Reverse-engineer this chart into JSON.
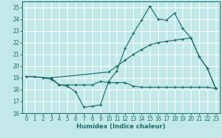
{
  "xlabel": "Humidex (Indice chaleur)",
  "bg_color": "#c2e8e8",
  "line_color": "#1a6e6a",
  "grid_color": "#b0d8d8",
  "xlim": [
    -0.5,
    23.5
  ],
  "ylim": [
    16,
    25.5
  ],
  "yticks": [
    16,
    17,
    18,
    19,
    20,
    21,
    22,
    23,
    24,
    25
  ],
  "xticks": [
    0,
    1,
    2,
    3,
    4,
    5,
    6,
    7,
    8,
    9,
    10,
    11,
    12,
    13,
    14,
    15,
    16,
    17,
    18,
    19,
    20,
    21,
    22,
    23
  ],
  "line1_x": [
    0,
    1,
    2,
    3,
    4,
    5,
    6,
    7,
    8,
    9,
    10,
    11,
    12,
    13,
    14,
    15,
    16,
    17,
    18,
    19,
    20,
    21,
    22,
    23
  ],
  "line1_y": [
    19.1,
    19.1,
    19.0,
    18.9,
    18.4,
    18.3,
    17.8,
    16.5,
    16.6,
    16.7,
    18.7,
    19.6,
    21.5,
    22.8,
    23.9,
    25.1,
    24.0,
    23.9,
    24.5,
    23.2,
    22.4,
    20.8,
    19.8,
    18.1
  ],
  "line2_x": [
    0,
    3,
    10,
    11,
    12,
    13,
    14,
    15,
    16,
    17,
    18,
    19,
    20,
    21,
    22,
    23
  ],
  "line2_y": [
    19.1,
    19.0,
    19.5,
    20.0,
    20.5,
    21.0,
    21.4,
    21.8,
    22.0,
    22.1,
    22.2,
    22.3,
    22.4,
    20.8,
    19.8,
    18.1
  ],
  "line3_x": [
    3,
    4,
    5,
    6,
    7,
    8,
    9,
    10,
    11,
    12,
    13,
    14,
    15,
    16,
    17,
    18,
    19,
    20,
    21,
    22,
    23
  ],
  "line3_y": [
    19.0,
    18.4,
    18.4,
    18.4,
    18.4,
    18.4,
    18.7,
    18.6,
    18.6,
    18.6,
    18.3,
    18.2,
    18.2,
    18.2,
    18.2,
    18.2,
    18.2,
    18.2,
    18.2,
    18.2,
    18.1
  ]
}
